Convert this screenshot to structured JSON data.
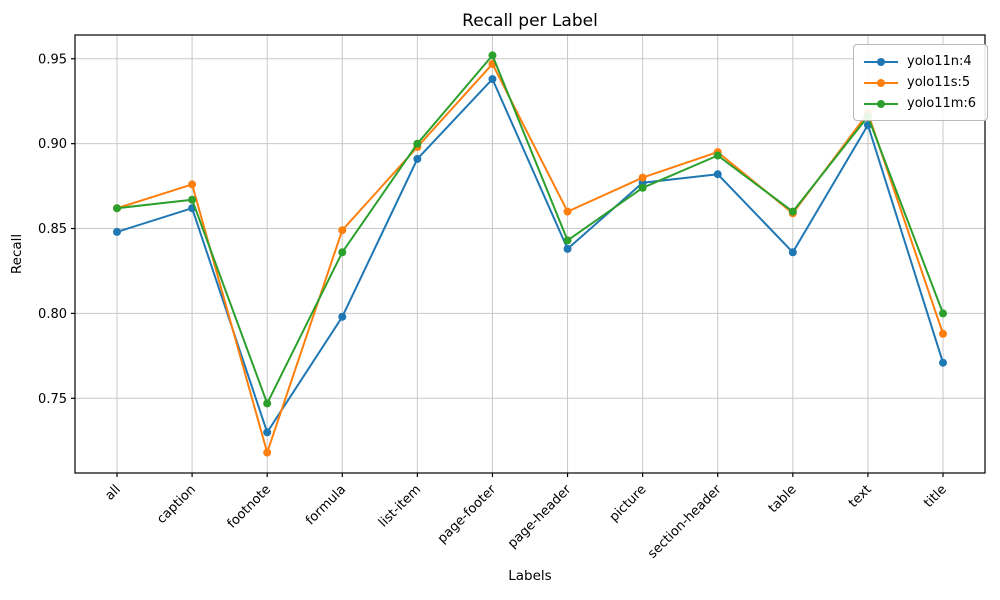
{
  "title": "Recall per Label",
  "chart_data": {
    "type": "line",
    "title": "Recall per Label",
    "xlabel": "Labels",
    "ylabel": "Recall",
    "categories": [
      "all",
      "caption",
      "footnote",
      "formula",
      "list-item",
      "page-footer",
      "page-header",
      "picture",
      "section-header",
      "table",
      "text",
      "title"
    ],
    "series": [
      {
        "name": "yolo11n:4",
        "color": "#1f77b4",
        "values": [
          0.848,
          0.862,
          0.73,
          0.798,
          0.891,
          0.938,
          0.838,
          0.877,
          0.882,
          0.836,
          0.911,
          0.771
        ]
      },
      {
        "name": "yolo11s:5",
        "color": "#ff7f0e",
        "values": [
          0.862,
          0.876,
          0.718,
          0.849,
          0.898,
          0.947,
          0.86,
          0.88,
          0.895,
          0.859,
          0.918,
          0.788
        ]
      },
      {
        "name": "yolo11m:6",
        "color": "#2ca02c",
        "values": [
          0.862,
          0.867,
          0.747,
          0.836,
          0.9,
          0.952,
          0.843,
          0.874,
          0.893,
          0.86,
          0.916,
          0.8
        ]
      }
    ],
    "ylim": [
      0.706,
      0.964
    ],
    "yticks": [
      0.75,
      0.8,
      0.85,
      0.9,
      0.95
    ],
    "ytick_format_decimals": 2,
    "grid": true,
    "legend_position": "upper right",
    "marker": "circle",
    "x_tick_rotation_deg": 45
  },
  "style_colors": {
    "grid": "#c8c8c8",
    "spine": "#000000",
    "tick": "#000000",
    "background": "#ffffff"
  }
}
